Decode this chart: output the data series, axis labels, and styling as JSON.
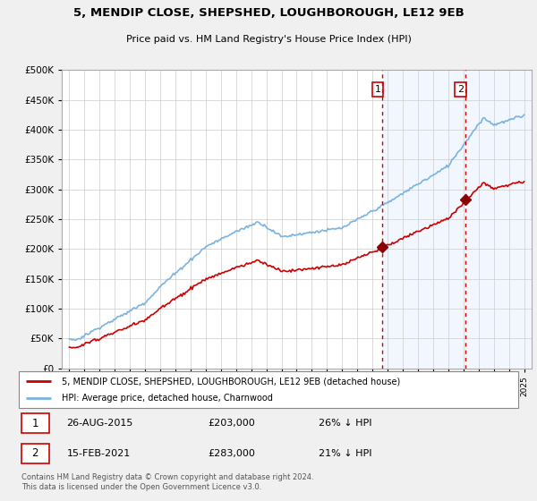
{
  "title": "5, MENDIP CLOSE, SHEPSHED, LOUGHBOROUGH, LE12 9EB",
  "subtitle": "Price paid vs. HM Land Registry's House Price Index (HPI)",
  "legend_line1": "5, MENDIP CLOSE, SHEPSHED, LOUGHBOROUGH, LE12 9EB (detached house)",
  "legend_line2": "HPI: Average price, detached house, Charnwood",
  "sale1_label": "1",
  "sale1_date": "26-AUG-2015",
  "sale1_price": "£203,000",
  "sale1_hpi": "26% ↓ HPI",
  "sale2_label": "2",
  "sale2_date": "15-FEB-2021",
  "sale2_price": "£283,000",
  "sale2_hpi": "21% ↓ HPI",
  "footnote": "Contains HM Land Registry data © Crown copyright and database right 2024.\nThis data is licensed under the Open Government Licence v3.0.",
  "hpi_color": "#7ab3e0",
  "price_color": "#cc0000",
  "sale_marker_color": "#8b0000",
  "vline_color": "#cc0000",
  "bg_color": "#f0f0f0",
  "plot_bg": "#ffffff",
  "shade_color": "#ddeeff",
  "ylim": [
    0,
    500000
  ],
  "yticks": [
    0,
    50000,
    100000,
    150000,
    200000,
    250000,
    300000,
    350000,
    400000,
    450000,
    500000
  ],
  "sale1_x": 2015.65,
  "sale1_y": 203000,
  "sale2_x": 2021.12,
  "sale2_y": 283000,
  "xmin": 1995,
  "xmax": 2025
}
